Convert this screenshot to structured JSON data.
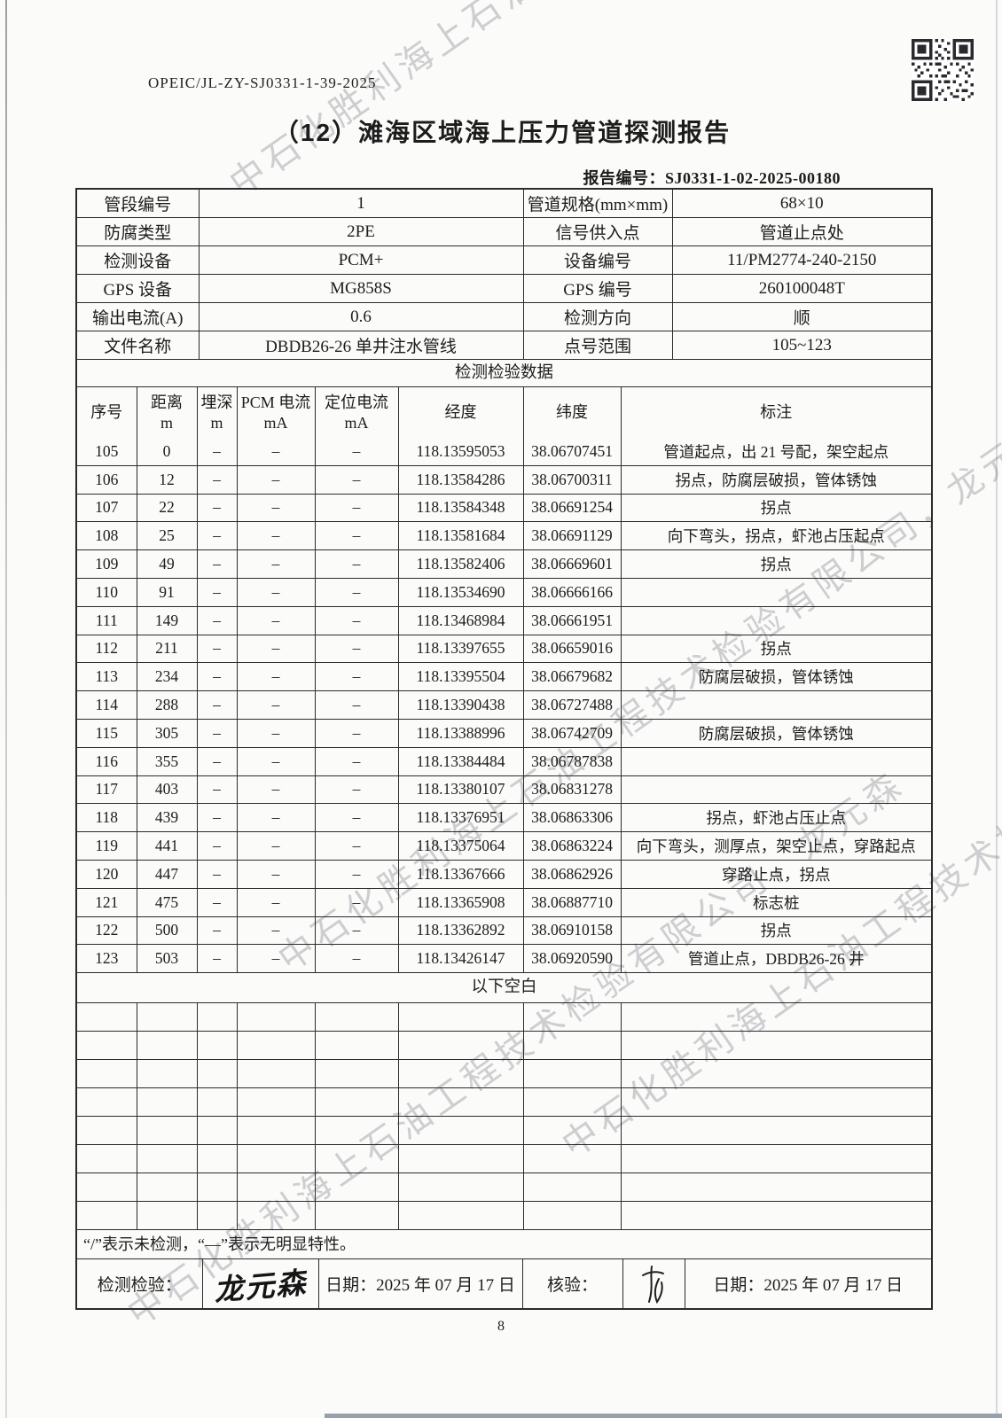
{
  "page": {
    "doc_number": "OPEIC/JL-ZY-SJ0331-1-39-2025",
    "title": "（12）滩海区域海上压力管道探测报告",
    "report_no_label": "报告编号：",
    "report_no": "SJ0331-1-02-2025-00180",
    "page_number": "8"
  },
  "icons": {
    "qr": "qr-code",
    "verifier_sign": "handwritten-scribble"
  },
  "watermark": {
    "text": "中石化胜利海上石油工程技术检验有限公司，龙元森"
  },
  "info_table": {
    "rows": [
      [
        {
          "label": "管段编号",
          "value": "1"
        },
        {
          "label": "管道规格(mm×mm)",
          "value": "68×10"
        }
      ],
      [
        {
          "label": "防腐类型",
          "value": "2PE"
        },
        {
          "label": "信号供入点",
          "value": "管道止点处"
        }
      ],
      [
        {
          "label": "检测设备",
          "value": "PCM+"
        },
        {
          "label": "设备编号",
          "value": "11/PM2774-240-2150"
        }
      ],
      [
        {
          "label": "GPS 设备",
          "value": "MG858S"
        },
        {
          "label": "GPS 编号",
          "value": "260100048T"
        }
      ],
      [
        {
          "label": "输出电流(A)",
          "value": "0.6"
        },
        {
          "label": "检测方向",
          "value": "顺"
        }
      ],
      [
        {
          "label": "文件名称",
          "value": "DBDB26-26 单井注水管线"
        },
        {
          "label": "点号范围",
          "value": "105~123"
        }
      ]
    ]
  },
  "data_section": {
    "title": "检测检验数据",
    "columns": [
      {
        "t": "序号",
        "s": ""
      },
      {
        "t": "距离",
        "s": "m"
      },
      {
        "t": "埋深",
        "s": "m"
      },
      {
        "t": "PCM 电流",
        "s": "mA"
      },
      {
        "t": "定位电流",
        "s": "mA"
      },
      {
        "t": "经度",
        "s": ""
      },
      {
        "t": "纬度",
        "s": ""
      },
      {
        "t": "标注",
        "s": ""
      }
    ],
    "rows": [
      [
        "105",
        "0",
        "–",
        "–",
        "–",
        "118.13595053",
        "38.06707451",
        "管道起点，出 21 号配，架空起点"
      ],
      [
        "106",
        "12",
        "–",
        "–",
        "–",
        "118.13584286",
        "38.06700311",
        "拐点，防腐层破损，管体锈蚀"
      ],
      [
        "107",
        "22",
        "–",
        "–",
        "–",
        "118.13584348",
        "38.06691254",
        "拐点"
      ],
      [
        "108",
        "25",
        "–",
        "–",
        "–",
        "118.13581684",
        "38.06691129",
        "向下弯头，拐点，虾池占压起点"
      ],
      [
        "109",
        "49",
        "–",
        "–",
        "–",
        "118.13582406",
        "38.06669601",
        "拐点"
      ],
      [
        "110",
        "91",
        "–",
        "–",
        "–",
        "118.13534690",
        "38.06666166",
        ""
      ],
      [
        "111",
        "149",
        "–",
        "–",
        "–",
        "118.13468984",
        "38.06661951",
        ""
      ],
      [
        "112",
        "211",
        "–",
        "–",
        "–",
        "118.13397655",
        "38.06659016",
        "拐点"
      ],
      [
        "113",
        "234",
        "–",
        "–",
        "–",
        "118.13395504",
        "38.06679682",
        "防腐层破损，管体锈蚀"
      ],
      [
        "114",
        "288",
        "–",
        "–",
        "–",
        "118.13390438",
        "38.06727488",
        ""
      ],
      [
        "115",
        "305",
        "–",
        "–",
        "–",
        "118.13388996",
        "38.06742709",
        "防腐层破损，管体锈蚀"
      ],
      [
        "116",
        "355",
        "–",
        "–",
        "–",
        "118.13384484",
        "38.06787838",
        ""
      ],
      [
        "117",
        "403",
        "–",
        "–",
        "–",
        "118.13380107",
        "38.06831278",
        ""
      ],
      [
        "118",
        "439",
        "–",
        "–",
        "–",
        "118.13376951",
        "38.06863306",
        "拐点，虾池占压止点"
      ],
      [
        "119",
        "441",
        "–",
        "–",
        "–",
        "118.13375064",
        "38.06863224",
        "向下弯头，测厚点，架空止点，穿路起点"
      ],
      [
        "120",
        "447",
        "–",
        "–",
        "–",
        "118.13367666",
        "38.06862926",
        "穿路止点，拐点"
      ],
      [
        "121",
        "475",
        "–",
        "–",
        "–",
        "118.13365908",
        "38.06887710",
        "标志桩"
      ],
      [
        "122",
        "500",
        "–",
        "–",
        "–",
        "118.13362892",
        "38.06910158",
        "拐点"
      ],
      [
        "123",
        "503",
        "–",
        "–",
        "–",
        "118.13426147",
        "38.06920590",
        "管道止点，DBDB26-26 井"
      ]
    ],
    "blank_row_label": "以下空白",
    "empty_row_count": 8
  },
  "footer": {
    "note": "“/”表示未检测，“—”表示无明显特性。",
    "inspector_label": "检测检验：",
    "inspector_signature": "龙元森",
    "date1": "日期：2025 年 07 月 17 日",
    "verifier_label": "核验：",
    "date2": "日期：2025 年 07 月 17 日"
  }
}
